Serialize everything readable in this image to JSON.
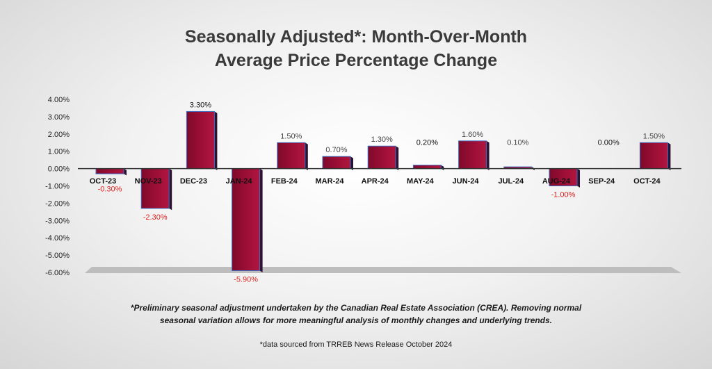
{
  "chart_data": {
    "type": "bar",
    "title_line1": "Seasonally Adjusted*:  Month-Over-Month",
    "title_line2": "Average Price Percentage Change",
    "categories": [
      "OCT-23",
      "NOV-23",
      "DEC-23",
      "JAN-24",
      "FEB-24",
      "MAR-24",
      "APR-24",
      "MAY-24",
      "JUN-24",
      "JUL-24",
      "AUG-24",
      "SEP-24",
      "OCT-24"
    ],
    "values": [
      -0.3,
      -2.3,
      3.3,
      -5.9,
      1.5,
      0.7,
      1.3,
      0.2,
      1.6,
      0.1,
      -1.0,
      0.0,
      1.5
    ],
    "data_labels": [
      "-0.30%",
      "-2.30%",
      "3.30%",
      "-5.90%",
      "1.50%",
      "0.70%",
      "1.30%",
      "0.20%",
      "1.60%",
      "0.10%",
      "-1.00%",
      "0.00%",
      "1.50%"
    ],
    "ylim": [
      -6,
      4
    ],
    "yticks": [
      4,
      3,
      2,
      1,
      0,
      -1,
      -2,
      -3,
      -4,
      -5,
      -6
    ],
    "ytick_labels": [
      "4.00%",
      "3.00%",
      "2.00%",
      "1.00%",
      "0.00%",
      "-1.00%",
      "-2.00%",
      "-3.00%",
      "-4.00%",
      "-5.00%",
      "-6.00%"
    ],
    "xlabel": "",
    "ylabel": "",
    "grid": false,
    "legend": "none",
    "colors": {
      "bar_front": "#9b0e35",
      "bar_side": "#2a1230",
      "bar_edge": "#3b6fc4",
      "negative_label": "#e02020",
      "positive_label": "#444444"
    }
  },
  "footnote_line1": "*Preliminary seasonal adjustment undertaken by the Canadian Real Estate Association (CREA).  Removing normal",
  "footnote_line2": "seasonal variation allows for more meaningful analysis of monthly changes and underlying trends.",
  "source_note": "*data sourced from TRREB News Release October 2024"
}
